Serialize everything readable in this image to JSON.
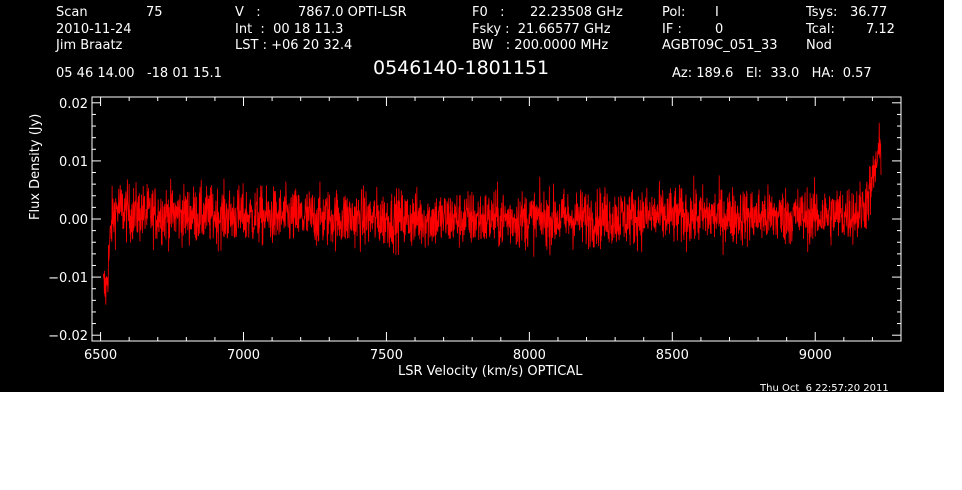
{
  "header": {
    "scan_label": "Scan",
    "scan_value": "75",
    "date": "2010-11-24",
    "observer": "Jim Braatz",
    "v_label": "V   :",
    "v_value": "7867.0 OPTI-LSR",
    "int_line": "Int  :  00 18 11.3",
    "lst_line": "LST : +06 20 32.4",
    "f0_label": "F0   :",
    "f0_value": "22.23508 GHz",
    "fsky_line": "Fsky :  21.66577 GHz",
    "bw_line": "BW   : 200.0000 MHz",
    "pol_label": "Pol:",
    "pol_value": "I",
    "if_label": "IF :",
    "if_value": "0",
    "project": "AGBT09C_051_33",
    "tsys_label": "Tsys:",
    "tsys_value": "36.77",
    "tcal_label": "Tcal:",
    "tcal_value": "7.12",
    "mode": "Nod",
    "coords": "05 46 14.00   -18 01 15.1",
    "source": "0546140-1801151",
    "az_el_ha": "Az: 189.6   El:  33.0   HA:  0.57",
    "timestamp": "Thu Oct  6 22:57:20 2011"
  },
  "chart_data": {
    "type": "line",
    "title": "0546140-1801151",
    "xlabel": "LSR Velocity (km/s) OPTICAL",
    "ylabel": "Flux Density (Jy)",
    "xlim": [
      6470,
      9300
    ],
    "ylim": [
      -0.021,
      0.021
    ],
    "xticks": [
      6500,
      7000,
      7500,
      8000,
      8500,
      9000
    ],
    "xtick_labels": [
      "6500",
      "7000",
      "7500",
      "8000",
      "8500",
      "9000"
    ],
    "yticks": [
      -0.02,
      -0.01,
      0.0,
      0.01,
      0.02
    ],
    "ytick_labels": [
      "−0.02",
      "−0.01",
      "0.00",
      "0.01",
      "0.02"
    ],
    "series": [
      {
        "color": "#ff0000",
        "x_range": [
          6510,
          9230
        ],
        "baseline_x": [
          6510,
          6520,
          6530,
          6540,
          6560,
          6600,
          7000,
          7500,
          8000,
          8500,
          9000,
          9150,
          9180,
          9200,
          9215,
          9230
        ],
        "baseline_y": [
          -0.012,
          -0.012,
          -0.006,
          0.0,
          0.002,
          0.001,
          0.0005,
          0.0,
          0.0,
          0.0005,
          0.0005,
          0.001,
          0.003,
          0.006,
          0.01,
          0.012
        ],
        "noise_rms": 0.0035
      }
    ],
    "grid": false,
    "axis_color": "#ffffff"
  }
}
